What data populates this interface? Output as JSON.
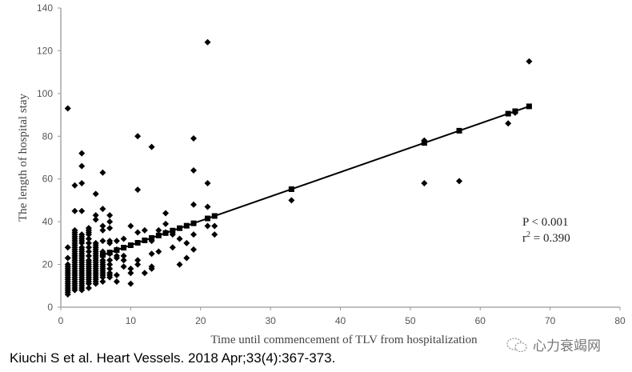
{
  "chart_data": {
    "type": "scatter",
    "title": "",
    "xlabel": "Time until commencement of TLV from hospitalization",
    "ylabel": "The length of hospital stay",
    "xlim": [
      0,
      80
    ],
    "ylim": [
      0,
      140
    ],
    "xticks": [
      0,
      10,
      20,
      30,
      40,
      50,
      60,
      70,
      80
    ],
    "yticks": [
      0,
      20,
      40,
      60,
      80,
      100,
      120,
      140
    ],
    "grid": false,
    "annotations": [
      "P < 0.001",
      "r",
      "2",
      " = 0.390"
    ],
    "fit_line": {
      "slope": 1.14,
      "intercept": 17.6,
      "marker_x": [
        6,
        7,
        8,
        9,
        10,
        11,
        12,
        13,
        14,
        15,
        16,
        17,
        18,
        19,
        21,
        22,
        33,
        52,
        57,
        64,
        65,
        67
      ]
    },
    "series": [
      {
        "name": "patients",
        "marker": "diamond",
        "points_by_x": {
          "1": [
            93,
            28,
            23,
            20,
            19,
            18,
            17,
            16,
            15,
            14,
            13,
            12,
            11,
            10,
            9,
            8,
            7,
            6
          ],
          "2": [
            57,
            45,
            36,
            35,
            34,
            33,
            32,
            31,
            30,
            29,
            28,
            27,
            26,
            25,
            24,
            23,
            22,
            21,
            20,
            19,
            18,
            17,
            16,
            15,
            14,
            13,
            12,
            11,
            10,
            9,
            8
          ],
          "3": [
            72,
            66,
            58,
            45,
            34,
            33,
            32,
            31,
            30,
            28,
            27,
            26,
            25,
            24,
            23,
            22,
            21,
            20,
            19,
            18,
            17,
            16,
            15,
            14,
            13,
            12,
            11,
            10,
            9,
            8
          ],
          "4": [
            37,
            36,
            35,
            34,
            32,
            30,
            28,
            26,
            24,
            22,
            21,
            20,
            19,
            18,
            17,
            16,
            15,
            14,
            13,
            12,
            11,
            9
          ],
          "5": [
            53,
            43,
            41,
            30,
            29,
            28,
            27,
            26,
            25,
            24,
            23,
            22,
            21,
            20,
            19,
            18,
            17,
            16,
            15,
            14,
            13,
            12,
            11
          ],
          "6": [
            63,
            46,
            38,
            36,
            31,
            26,
            24,
            22,
            21,
            20,
            19,
            18,
            17,
            16,
            15,
            14,
            12
          ],
          "7": [
            43,
            40,
            37,
            31,
            30,
            25,
            22,
            20,
            18,
            16,
            15,
            14
          ],
          "8": [
            31,
            27,
            24,
            23,
            15,
            12
          ],
          "9": [
            32,
            24,
            22,
            19
          ],
          "10": [
            38,
            18,
            16,
            11
          ],
          "11": [
            80,
            55,
            35,
            22,
            20
          ],
          "12": [
            36,
            16
          ],
          "13": [
            75,
            31,
            25,
            19,
            18
          ],
          "14": [
            36,
            26
          ],
          "15": [
            44,
            39,
            35
          ],
          "16": [
            34,
            28
          ],
          "17": [
            32,
            20
          ],
          "18": [
            30,
            23
          ],
          "19": [
            79,
            64,
            48,
            34,
            27
          ],
          "21": [
            124,
            58,
            47,
            38
          ],
          "22": [
            38,
            34
          ],
          "33": [
            50
          ],
          "52": [
            78,
            58
          ],
          "57": [
            59
          ],
          "64": [
            86
          ],
          "65": [
            91
          ],
          "67": [
            115
          ]
        }
      }
    ]
  },
  "caption": "Kiuchi S et al. Heart Vessels. 2018 Apr;33(4):367-373.",
  "watermark": "心力衰竭网",
  "colors": {
    "axis": "#999999",
    "marker": "#000000"
  }
}
